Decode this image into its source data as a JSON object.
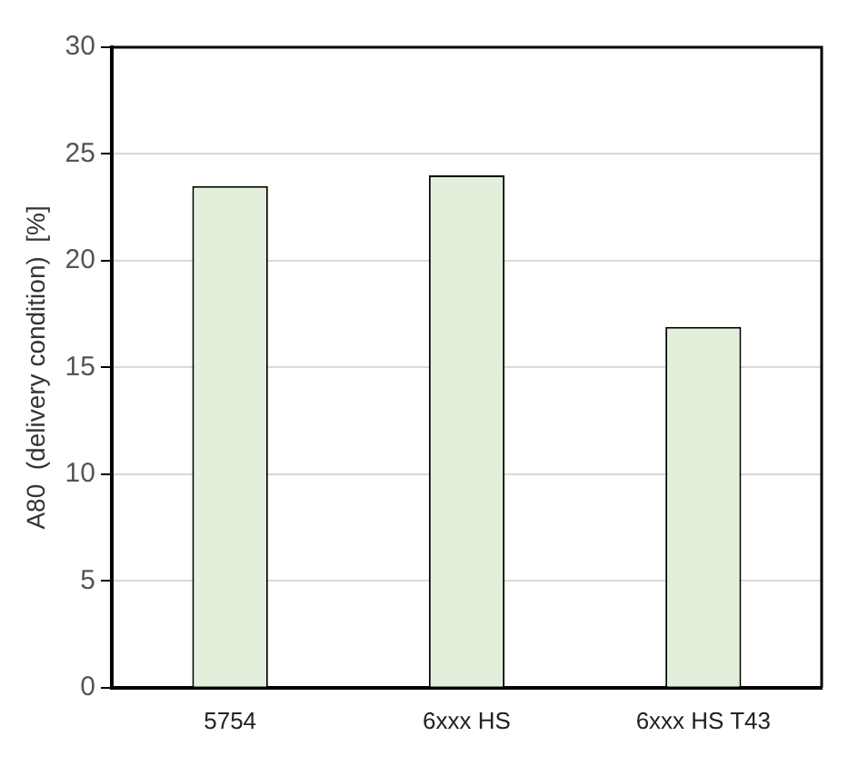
{
  "chart_data": {
    "type": "bar",
    "ylabel": "A80  (delivery condition)  [%]",
    "categories": [
      "5754",
      "6xxx HS",
      "6xxx HS T43"
    ],
    "values": [
      23.5,
      24.0,
      16.9
    ],
    "color": "#e2efda",
    "ylim": [
      0,
      30
    ],
    "yticks": [
      0,
      5,
      10,
      15,
      20,
      25,
      30
    ],
    "grid": "y"
  }
}
